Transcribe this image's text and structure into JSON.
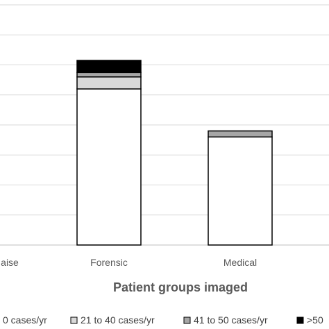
{
  "chart_data": {
    "type": "bar",
    "stacked": true,
    "title": "",
    "xlabel": "Patient groups imaged",
    "ylabel": "",
    "categories": [
      "aise",
      "Forensic",
      "Medical"
    ],
    "grid": true,
    "legend_position": "bottom",
    "ylim": [
      0,
      8
    ],
    "series": [
      {
        "name": "0 cases/yr",
        "color": "#ffffff",
        "values": [
          0,
          5.2,
          3.6
        ]
      },
      {
        "name": "21 to 40 cases/yr",
        "color": "#d9d9d9",
        "values": [
          0,
          0.4,
          0
        ]
      },
      {
        "name": "41 to 50 cases/yr",
        "color": "#a6a6a6",
        "values": [
          0,
          0.15,
          0.2
        ]
      },
      {
        "name": ">50",
        "color": "#000000",
        "values": [
          0,
          0.4,
          0
        ]
      }
    ]
  }
}
